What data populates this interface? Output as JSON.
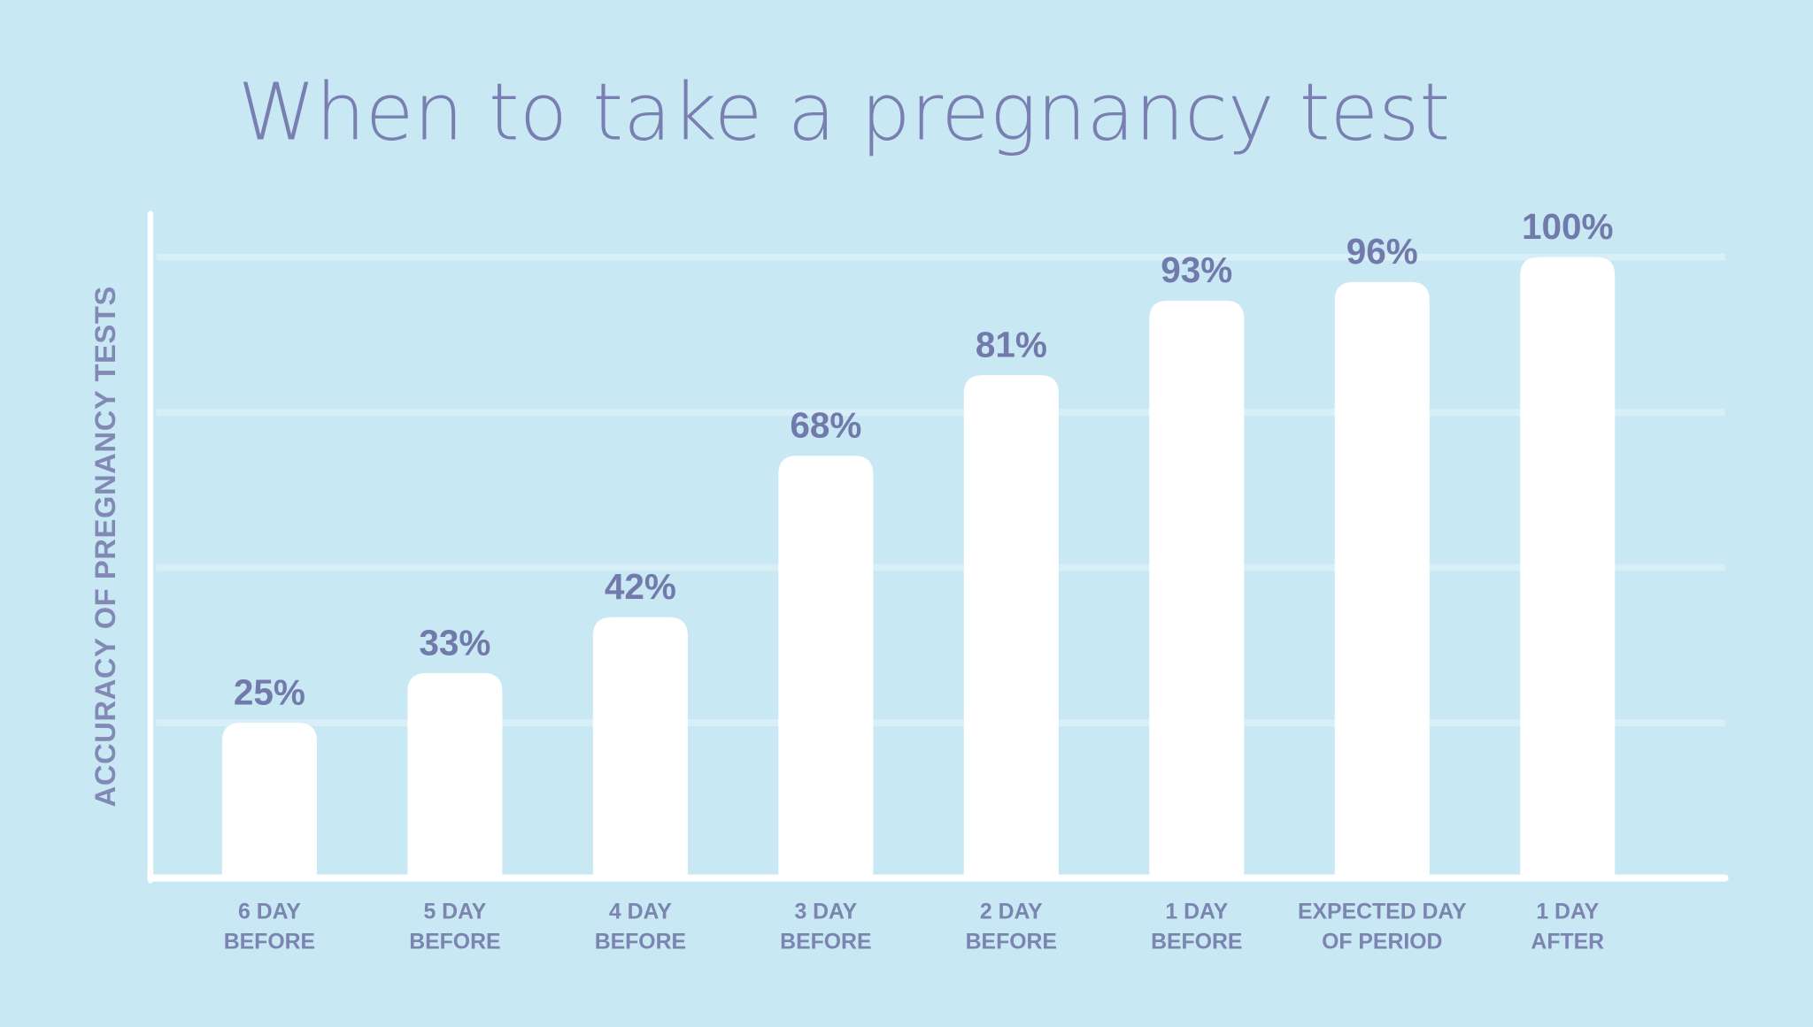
{
  "chart_data": {
    "type": "bar",
    "title": "When to take a pregnancy test",
    "y_label": "ACCURACY OF PREGNANCY TESTS",
    "categories": [
      "6 DAY\nBEFORE",
      "5 DAY\nBEFORE",
      "4 DAY\nBEFORE",
      "3 DAY\nBEFORE",
      "2 DAY\nBEFORE",
      "1 DAY\nBEFORE",
      "EXPECTED DAY\nOF PERIOD",
      "1 DAY\nAFTER"
    ],
    "values": [
      25,
      33,
      42,
      68,
      81,
      93,
      96,
      100
    ],
    "value_labels": [
      "25%",
      "33%",
      "42%",
      "68%",
      "81%",
      "93%",
      "96%",
      "100%"
    ],
    "color": "#ffffff",
    "ylim": [
      0,
      107
    ],
    "yticks": [
      25,
      50,
      75,
      100
    ],
    "grid": true
  }
}
